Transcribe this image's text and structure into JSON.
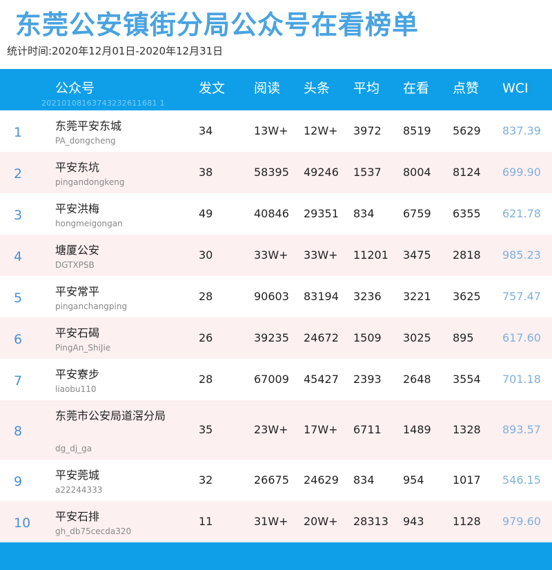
{
  "title": "东莞公安镇街分局公众号在看榜单",
  "subtitle": "统计时间:2020年12月01日-2020年12月31日",
  "header": {
    "cols": [
      "公众号",
      "发文",
      "阅读",
      "头条",
      "平均",
      "在看",
      "点赞",
      "WCI"
    ],
    "code": "20210108163743232611681 1"
  },
  "rows": [
    {
      "rank": "1",
      "name": "东莞平安东城",
      "handle": "PA_dongcheng",
      "posts": "34",
      "reads": "13W+",
      "headline": "12W+",
      "avg": "3972",
      "watching": "8519",
      "likes": "5629",
      "wci": "837.39"
    },
    {
      "rank": "2",
      "name": "平安东坑",
      "handle": "pingandongkeng",
      "posts": "38",
      "reads": "58395",
      "headline": "49246",
      "avg": "1537",
      "watching": "8004",
      "likes": "8124",
      "wci": "699.90"
    },
    {
      "rank": "3",
      "name": "平安洪梅",
      "handle": "hongmeigongan",
      "posts": "49",
      "reads": "40846",
      "headline": "29351",
      "avg": "834",
      "watching": "6759",
      "likes": "6355",
      "wci": "621.78"
    },
    {
      "rank": "4",
      "name": "塘厦公安",
      "handle": "DGTXPSB",
      "posts": "30",
      "reads": "33W+",
      "headline": "33W+",
      "avg": "11201",
      "watching": "3475",
      "likes": "2818",
      "wci": "985.23"
    },
    {
      "rank": "5",
      "name": "平安常平",
      "handle": "pinganchangping",
      "posts": "28",
      "reads": "90603",
      "headline": "83194",
      "avg": "3236",
      "watching": "3221",
      "likes": "3625",
      "wci": "757.47"
    },
    {
      "rank": "6",
      "name": "平安石碣",
      "handle": "PingAn_ShiJie",
      "posts": "26",
      "reads": "39235",
      "headline": "24672",
      "avg": "1509",
      "watching": "3025",
      "likes": "895",
      "wci": "617.60"
    },
    {
      "rank": "7",
      "name": "平安寮步",
      "handle": "liaobu110",
      "posts": "28",
      "reads": "67009",
      "headline": "45427",
      "avg": "2393",
      "watching": "2648",
      "likes": "3554",
      "wci": "701.18"
    },
    {
      "rank": "8",
      "name": "东莞市公安局道滘分局",
      "handle": "dg_dj_ga",
      "posts": "35",
      "reads": "23W+",
      "headline": "17W+",
      "avg": "6711",
      "watching": "1489",
      "likes": "1328",
      "wci": "893.57"
    },
    {
      "rank": "9",
      "name": "平安莞城",
      "handle": "a22244333",
      "posts": "32",
      "reads": "26675",
      "headline": "24629",
      "avg": "834",
      "watching": "954",
      "likes": "1017",
      "wci": "546.15"
    },
    {
      "rank": "10",
      "name": "平安石排",
      "handle": "gh_db75cecda320",
      "posts": "11",
      "reads": "31W+",
      "headline": "20W+",
      "avg": "28313",
      "watching": "943",
      "likes": "1128",
      "wci": "979.60"
    }
  ]
}
